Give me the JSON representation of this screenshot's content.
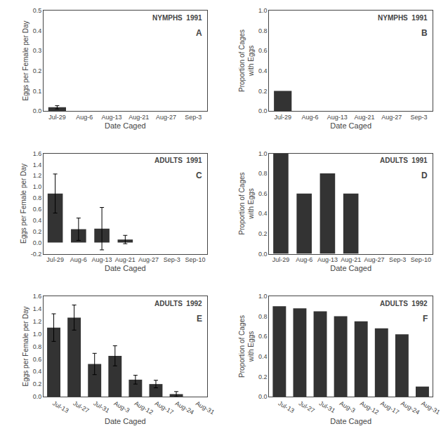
{
  "chart_data": [
    {
      "type": "bar",
      "title": "NYMPHS  1991",
      "annotations": [
        "A"
      ],
      "xlabel": "Date Caged",
      "ylabel": "Eggs per Female per Day",
      "categories": [
        "Jul-29",
        "Aug-6",
        "Aug-13",
        "Aug-21",
        "Aug-27",
        "Sep-3"
      ],
      "values": [
        0.018,
        0.0,
        0.0,
        0.0,
        0.0,
        0.0
      ],
      "errors": [
        0.008,
        0.0,
        0.0,
        0.0,
        0.0,
        0.0
      ],
      "color": "#333333",
      "ylim": [
        0,
        0.5
      ],
      "yticks": [
        {
          "value": 0.0,
          "label": "0.0"
        },
        0.1,
        0.2,
        0.3,
        0.4,
        0.5
      ],
      "grid": false
    },
    {
      "type": "bar",
      "title": "NYMPHS  1991",
      "annotations": [
        "B"
      ],
      "xlabel": "Date Caged",
      "ylabel": "Proportion of Cages\nwith Eggs",
      "categories": [
        "Jul-29",
        "Aug-6",
        "Aug-13",
        "Aug-21",
        "Aug-27",
        "Sep-3"
      ],
      "values": [
        0.2,
        0.0,
        0.0,
        0.0,
        0.0,
        0.0
      ],
      "errors": [
        0.0,
        0.0,
        0.0,
        0.0,
        0.0,
        0.0
      ],
      "color": "#333333",
      "ylim": [
        0,
        1.0
      ],
      "yticks": [
        {
          "value": 0.0,
          "label": "0.0"
        },
        0.2,
        0.4,
        0.6,
        0.8,
        {
          "value": 1.0,
          "label": "1.0"
        }
      ],
      "grid": false
    },
    {
      "type": "bar",
      "title": "ADULTS  1991",
      "annotations": [
        "C"
      ],
      "xlabel": "Date Caged",
      "ylabel": "Eggs per Female per Day",
      "categories": [
        "Jul-29",
        "Aug-6",
        "Aug-13",
        "Aug-21",
        "Aug-27",
        "Sep-3",
        "Sep-10"
      ],
      "values": [
        0.88,
        0.24,
        0.25,
        0.055,
        0.0,
        0.0,
        0.0
      ],
      "errors": [
        0.35,
        0.2,
        0.38,
        0.075,
        0.0,
        0.0,
        0.0
      ],
      "color": "#333333",
      "ylim": [
        -0.2,
        1.6
      ],
      "yticks": [
        -0.2,
        {
          "value": 0.0,
          "label": "0.0"
        },
        0.2,
        0.4,
        0.6,
        0.8,
        {
          "value": 1.0,
          "label": "1.0"
        },
        1.2,
        1.4,
        1.6
      ],
      "grid": false
    },
    {
      "type": "bar",
      "title": "ADULTS  1991",
      "annotations": [
        "D"
      ],
      "xlabel": "Date Caged",
      "ylabel": "Proportion of Cages\nwith Eggs",
      "categories": [
        "Jul-29",
        "Aug-6",
        "Aug-13",
        "Aug-21",
        "Aug-27",
        "Sep-3",
        "Sep-10"
      ],
      "values": [
        1.0,
        0.6,
        0.8,
        0.6,
        0.0,
        0.0,
        0.0
      ],
      "errors": [
        0.0,
        0.0,
        0.0,
        0.0,
        0.0,
        0.0,
        0.0
      ],
      "color": "#333333",
      "ylim": [
        0,
        1.0
      ],
      "yticks": [
        {
          "value": 0.0,
          "label": "0.0"
        },
        0.2,
        0.4,
        0.6,
        0.8,
        {
          "value": 1.0,
          "label": "1.0"
        }
      ],
      "grid": false
    },
    {
      "type": "bar",
      "title": "ADULTS  1992",
      "annotations": [
        "E"
      ],
      "xlabel": "Date Caged",
      "ylabel": "Eggs per Female per Day",
      "categories": [
        "Jul-13",
        "Jul-27",
        "Jul-31",
        "Aug-3",
        "Aug-12",
        "Aug-17",
        "Aug-24",
        "Aug-31"
      ],
      "values": [
        1.1,
        1.26,
        0.52,
        0.65,
        0.27,
        0.2,
        0.04,
        0.0
      ],
      "errors": [
        0.22,
        0.2,
        0.17,
        0.16,
        0.07,
        0.06,
        0.04,
        0.0
      ],
      "color": "#333333",
      "ylim": [
        0,
        1.6
      ],
      "yticks": [
        {
          "value": 0.0,
          "label": "0.0"
        },
        0.2,
        0.4,
        0.6,
        0.8,
        {
          "value": 1.0,
          "label": "1.0"
        },
        1.2,
        1.4,
        1.6
      ],
      "grid": false
    },
    {
      "type": "bar",
      "title": "ADULTS  1992",
      "annotations": [
        "F"
      ],
      "xlabel": "Date Caged",
      "ylabel": "Proportion of Cages\nwith Eggs",
      "categories": [
        "Jul-13",
        "Jul-27",
        "Jul-31",
        "Aug-3",
        "Aug-12",
        "Aug-17",
        "Aug-24",
        "Aug-31"
      ],
      "values": [
        0.9,
        0.88,
        0.85,
        0.8,
        0.75,
        0.68,
        0.62,
        0.1
      ],
      "errors": [
        0.0,
        0.0,
        0.0,
        0.0,
        0.0,
        0.0,
        0.0,
        0.0
      ],
      "color": "#333333",
      "ylim": [
        0,
        1.0
      ],
      "yticks": [
        {
          "value": 0.0,
          "label": "0.0"
        },
        0.2,
        0.4,
        0.6,
        0.8,
        {
          "value": 1.0,
          "label": "1.0"
        }
      ],
      "grid": false
    }
  ]
}
